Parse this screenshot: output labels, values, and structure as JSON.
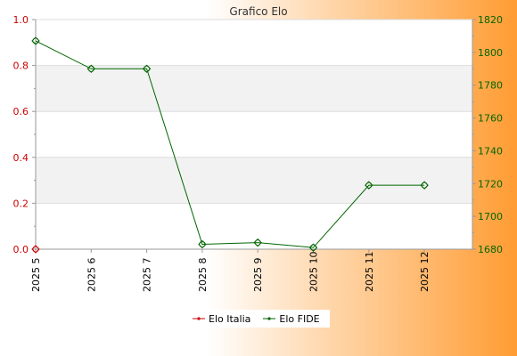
{
  "chart_data": {
    "type": "line",
    "title": "Grafico Elo",
    "categories": [
      "2025 5",
      "2025 6",
      "2025 7",
      "2025 8",
      "2025 9",
      "2025 10",
      "2025 11",
      "2025 12"
    ],
    "series": [
      {
        "name": "Elo Italia",
        "axis": "left",
        "color": "#cc0000",
        "values": [
          0,
          null,
          null,
          null,
          null,
          null,
          null,
          null
        ]
      },
      {
        "name": "Elo FIDE",
        "axis": "right",
        "color": "#006600",
        "values": [
          1807,
          1790,
          1790,
          1683,
          1684,
          1681,
          1719,
          1719
        ]
      }
    ],
    "ylim_left": [
      0,
      1.0
    ],
    "yticks_left": [
      "0.0",
      "0.2",
      "0.4",
      "0.6",
      "0.8",
      "1.0"
    ],
    "ylim_right": [
      1680,
      1820
    ],
    "yticks_right": [
      "1680",
      "1700",
      "1720",
      "1740",
      "1760",
      "1780",
      "1800",
      "1820"
    ],
    "left_axis_color": "#cc0000",
    "right_axis_color": "#006600",
    "band_color": "#f2f2f2",
    "grid": true,
    "legend_position": "bottom-center"
  }
}
